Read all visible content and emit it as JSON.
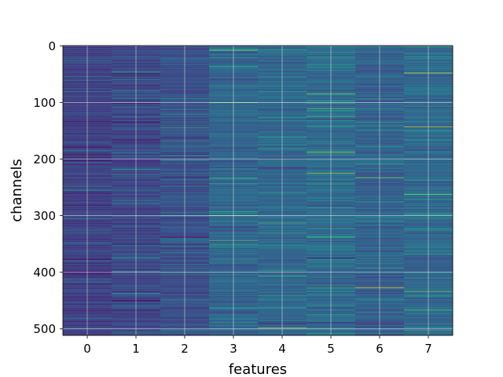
{
  "chart_data": {
    "type": "heatmap",
    "title": "",
    "xlabel": "features",
    "ylabel": "channels",
    "x_categories": [
      "0",
      "1",
      "2",
      "3",
      "4",
      "5",
      "6",
      "7"
    ],
    "y_ticks": [
      0,
      100,
      200,
      300,
      400,
      500
    ],
    "y_tick_labels": [
      "0",
      "100",
      "200",
      "300",
      "400",
      "500"
    ],
    "xlim": [
      -0.5,
      7.5
    ],
    "ylim": [
      511.5,
      -0.5
    ],
    "rows": 512,
    "cols": 8,
    "grid": true,
    "colormap": "viridis",
    "value_range": [
      0,
      1
    ],
    "column_mean_intensity": [
      0.2,
      0.22,
      0.25,
      0.33,
      0.34,
      0.35,
      0.31,
      0.34
    ],
    "highlighted_rows": [
      {
        "feature": "0",
        "channel": 25,
        "value": 0.45
      },
      {
        "feature": "1",
        "channel": 60,
        "value": 0.5
      },
      {
        "feature": "1",
        "channel": 450,
        "value": 0.05
      },
      {
        "feature": "2",
        "channel": 145,
        "value": 0.65
      },
      {
        "feature": "2",
        "channel": 400,
        "value": 0.55
      },
      {
        "feature": "3",
        "channel": 8,
        "value": 0.75
      },
      {
        "feature": "3",
        "channel": 100,
        "value": 0.8
      },
      {
        "feature": "3",
        "channel": 300,
        "value": 0.8
      },
      {
        "feature": "4",
        "channel": 313,
        "value": 0.7
      },
      {
        "feature": "4",
        "channel": 498,
        "value": 0.85
      },
      {
        "feature": "5",
        "channel": 85,
        "value": 0.8
      },
      {
        "feature": "5",
        "channel": 188,
        "value": 0.9
      },
      {
        "feature": "5",
        "channel": 225,
        "value": 0.85
      },
      {
        "feature": "5",
        "channel": 375,
        "value": 0.05
      },
      {
        "feature": "6",
        "channel": 233,
        "value": 0.8
      },
      {
        "feature": "6",
        "channel": 427,
        "value": 0.95
      },
      {
        "feature": "7",
        "channel": 48,
        "value": 0.95
      },
      {
        "feature": "7",
        "channel": 143,
        "value": 0.9
      },
      {
        "feature": "7",
        "channel": 262,
        "value": 0.75
      },
      {
        "feature": "7",
        "channel": 434,
        "value": 0.8
      }
    ]
  }
}
